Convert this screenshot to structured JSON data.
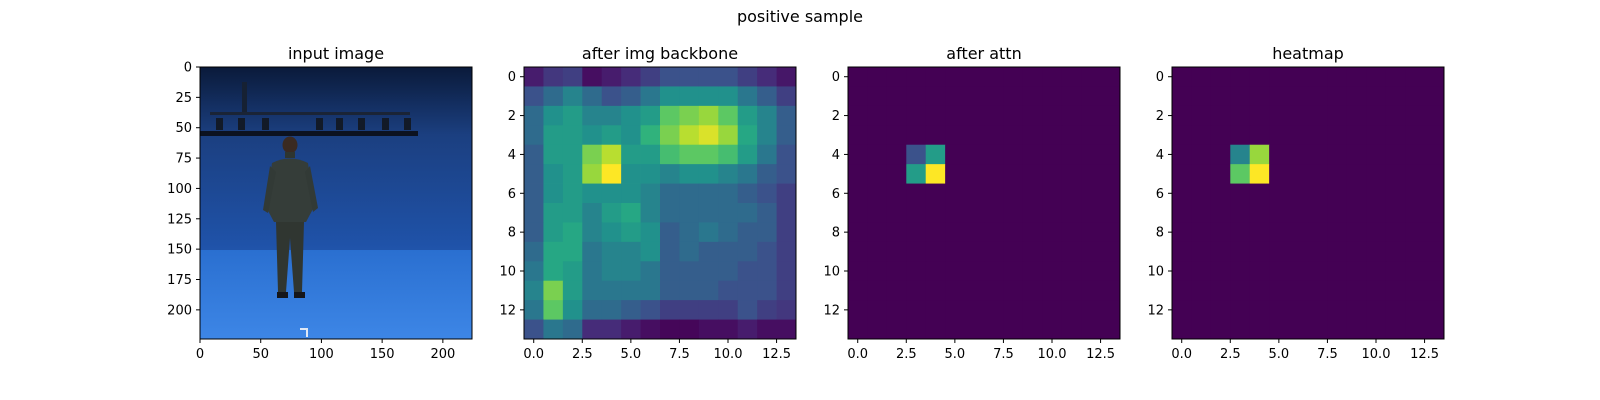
{
  "figure": {
    "suptitle": "positive sample"
  },
  "chart_data": [
    {
      "type": "heatmap",
      "title": "input image",
      "content": "photograph: person standing in blue motion-capture studio",
      "xlim": [
        0,
        224
      ],
      "ylim": [
        224,
        0
      ],
      "xticks": [
        0,
        50,
        100,
        150,
        200
      ],
      "yticks": [
        0,
        25,
        50,
        75,
        100,
        125,
        150,
        175,
        200
      ]
    },
    {
      "type": "heatmap",
      "title": "after img backbone",
      "colormap": "viridis",
      "xlim": [
        -0.5,
        13.5
      ],
      "ylim": [
        13.5,
        -0.5
      ],
      "xticks": [
        0.0,
        2.5,
        5.0,
        7.5,
        10.0,
        12.5
      ],
      "yticks": [
        0,
        2,
        4,
        6,
        8,
        10,
        12
      ],
      "values": [
        [
          0.1,
          0.18,
          0.2,
          0.05,
          0.1,
          0.15,
          0.2,
          0.25,
          0.25,
          0.25,
          0.25,
          0.2,
          0.15,
          0.08
        ],
        [
          0.25,
          0.35,
          0.45,
          0.35,
          0.25,
          0.3,
          0.4,
          0.5,
          0.5,
          0.5,
          0.5,
          0.4,
          0.3,
          0.2
        ],
        [
          0.35,
          0.5,
          0.55,
          0.45,
          0.45,
          0.5,
          0.55,
          0.75,
          0.8,
          0.85,
          0.75,
          0.55,
          0.45,
          0.3
        ],
        [
          0.35,
          0.55,
          0.55,
          0.5,
          0.55,
          0.5,
          0.65,
          0.8,
          0.9,
          0.95,
          0.85,
          0.6,
          0.45,
          0.3
        ],
        [
          0.3,
          0.55,
          0.55,
          0.8,
          0.9,
          0.55,
          0.55,
          0.7,
          0.75,
          0.75,
          0.7,
          0.55,
          0.4,
          0.25
        ],
        [
          0.3,
          0.5,
          0.55,
          0.85,
          1.0,
          0.5,
          0.5,
          0.45,
          0.5,
          0.5,
          0.45,
          0.4,
          0.3,
          0.25
        ],
        [
          0.3,
          0.5,
          0.55,
          0.5,
          0.5,
          0.5,
          0.45,
          0.35,
          0.35,
          0.35,
          0.35,
          0.3,
          0.25,
          0.2
        ],
        [
          0.3,
          0.55,
          0.55,
          0.45,
          0.55,
          0.6,
          0.45,
          0.35,
          0.35,
          0.35,
          0.35,
          0.35,
          0.3,
          0.2
        ],
        [
          0.3,
          0.55,
          0.6,
          0.45,
          0.5,
          0.55,
          0.5,
          0.3,
          0.35,
          0.4,
          0.35,
          0.3,
          0.3,
          0.2
        ],
        [
          0.35,
          0.6,
          0.6,
          0.4,
          0.45,
          0.45,
          0.5,
          0.3,
          0.35,
          0.3,
          0.3,
          0.3,
          0.25,
          0.2
        ],
        [
          0.4,
          0.6,
          0.55,
          0.4,
          0.45,
          0.45,
          0.4,
          0.3,
          0.3,
          0.3,
          0.3,
          0.25,
          0.25,
          0.2
        ],
        [
          0.45,
          0.8,
          0.55,
          0.4,
          0.4,
          0.4,
          0.4,
          0.3,
          0.3,
          0.3,
          0.25,
          0.25,
          0.25,
          0.2
        ],
        [
          0.4,
          0.75,
          0.5,
          0.35,
          0.35,
          0.3,
          0.25,
          0.2,
          0.2,
          0.2,
          0.2,
          0.25,
          0.2,
          0.18
        ],
        [
          0.25,
          0.4,
          0.35,
          0.15,
          0.15,
          0.1,
          0.05,
          0.02,
          0.02,
          0.05,
          0.05,
          0.1,
          0.05,
          0.05
        ]
      ]
    },
    {
      "type": "heatmap",
      "title": "after attn",
      "colormap": "viridis",
      "xlim": [
        -0.5,
        13.5
      ],
      "ylim": [
        13.5,
        -0.5
      ],
      "xticks": [
        0.0,
        2.5,
        5.0,
        7.5,
        10.0,
        12.5
      ],
      "yticks": [
        0,
        2,
        4,
        6,
        8,
        10,
        12
      ],
      "background": 0,
      "cells": [
        {
          "row": 4,
          "col": 3,
          "value": 0.25
        },
        {
          "row": 4,
          "col": 4,
          "value": 0.55
        },
        {
          "row": 5,
          "col": 3,
          "value": 0.55
        },
        {
          "row": 5,
          "col": 4,
          "value": 1.0
        }
      ]
    },
    {
      "type": "heatmap",
      "title": "heatmap",
      "colormap": "viridis",
      "xlim": [
        -0.5,
        13.5
      ],
      "ylim": [
        13.5,
        -0.5
      ],
      "xticks": [
        0.0,
        2.5,
        5.0,
        7.5,
        10.0,
        12.5
      ],
      "yticks": [
        0,
        2,
        4,
        6,
        8,
        10,
        12
      ],
      "background": 0,
      "cells": [
        {
          "row": 4,
          "col": 3,
          "value": 0.45
        },
        {
          "row": 4,
          "col": 4,
          "value": 0.85
        },
        {
          "row": 5,
          "col": 3,
          "value": 0.75
        },
        {
          "row": 5,
          "col": 4,
          "value": 1.0
        }
      ]
    }
  ]
}
